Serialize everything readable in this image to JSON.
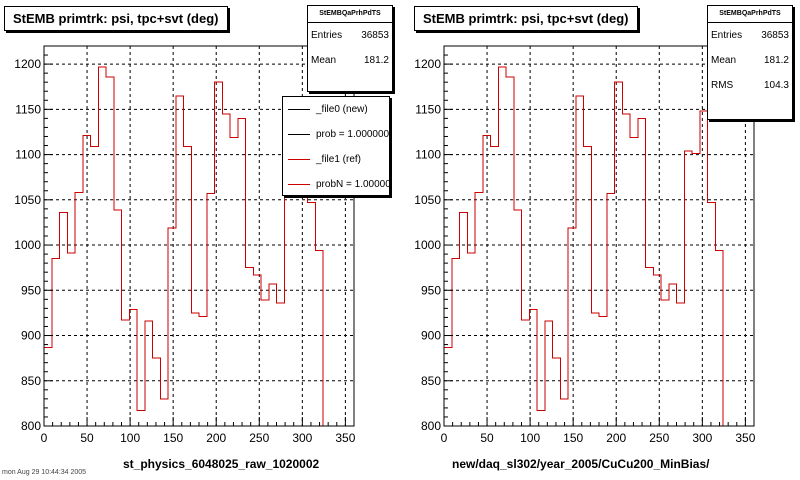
{
  "footer_text": "mon Aug 29 10:44:34 2005",
  "chart_data": [
    {
      "type": "line",
      "title": "StEMB primtrk: psi, tpc+svt (deg)",
      "xlabel": "st_physics_6048025_raw_1020002",
      "ylabel": "",
      "xlim": [
        0,
        360
      ],
      "ylim": [
        800,
        1220
      ],
      "xticks": [
        0,
        50,
        100,
        150,
        200,
        250,
        300,
        350
      ],
      "yticks": [
        800,
        850,
        900,
        950,
        1000,
        1050,
        1100,
        1150,
        1200
      ],
      "grid": true,
      "bin_width": 9,
      "stats": {
        "name": "StEMBQaPrhPdTS",
        "entries_label": "Entries",
        "entries": "36853",
        "mean_label": "Mean",
        "mean": "181.2"
      },
      "legend": {
        "placement": "top-right",
        "entries": [
          {
            "label": "_file0 (new)",
            "color": "#000000"
          },
          {
            "label": "prob = 1.000000",
            "color": "#000000"
          },
          {
            "label": "_file1 (ref)",
            "color": "#cc0000"
          },
          {
            "label": "probN = 1.000000",
            "color": "#cc0000"
          }
        ]
      },
      "series": [
        {
          "color": "#000000",
          "values": [
            887,
            985,
            1036,
            991,
            1058,
            1121,
            1109,
            1197,
            1186,
            1039,
            917,
            929,
            817,
            916,
            875,
            830,
            1019,
            1165,
            1109,
            925,
            921,
            1057,
            1180,
            1145,
            1119,
            1140,
            975,
            967,
            939,
            957,
            936,
            1104,
            1101,
            1148,
            1047,
            994
          ]
        },
        {
          "color": "#cc0000",
          "values": [
            887,
            985,
            1036,
            991,
            1058,
            1121,
            1109,
            1197,
            1186,
            1039,
            917,
            929,
            817,
            916,
            875,
            830,
            1019,
            1165,
            1109,
            925,
            921,
            1057,
            1180,
            1145,
            1119,
            1140,
            975,
            967,
            939,
            957,
            936,
            1104,
            1101,
            1148,
            1047,
            994
          ]
        }
      ]
    },
    {
      "type": "line",
      "title": "StEMB primtrk: psi, tpc+svt (deg)",
      "xlabel": "new/daq_sl302/year_2005/CuCu200_MinBias/",
      "ylabel": "",
      "xlim": [
        0,
        360
      ],
      "ylim": [
        800,
        1220
      ],
      "xticks": [
        0,
        50,
        100,
        150,
        200,
        250,
        300,
        350
      ],
      "yticks": [
        800,
        850,
        900,
        950,
        1000,
        1050,
        1100,
        1150,
        1200
      ],
      "grid": true,
      "bin_width": 9,
      "stats": {
        "name": "StEMBQaPrhPdTS",
        "entries_label": "Entries",
        "entries": "36853",
        "mean_label": "Mean",
        "mean": "181.2",
        "rms_label": "RMS",
        "rms": "104.3"
      },
      "series": [
        {
          "color": "#cc0000",
          "values": [
            887,
            985,
            1036,
            991,
            1058,
            1121,
            1109,
            1197,
            1186,
            1039,
            917,
            929,
            817,
            916,
            875,
            830,
            1019,
            1165,
            1109,
            925,
            921,
            1057,
            1180,
            1145,
            1119,
            1140,
            975,
            967,
            939,
            957,
            936,
            1104,
            1101,
            1148,
            1047,
            994
          ]
        }
      ]
    }
  ]
}
